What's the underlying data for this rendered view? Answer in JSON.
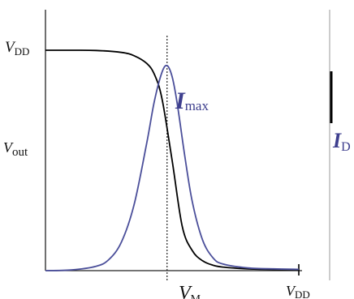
{
  "chart_data": {
    "type": "line",
    "title": "",
    "xlabel": "",
    "ylabel": "",
    "xlim": [
      0,
      1
    ],
    "ylim": [
      0,
      1.15
    ],
    "grid": false,
    "legend": "none",
    "series": [
      {
        "color": "#000000",
        "x": [
          0,
          0.1,
          0.2,
          0.3,
          0.35,
          0.4,
          0.43,
          0.46,
          0.5,
          0.54,
          0.58,
          0.62,
          0.66,
          0.7,
          0.8,
          0.9,
          1.0
        ],
        "y": [
          1.0,
          1.0,
          0.999,
          0.99,
          0.975,
          0.94,
          0.89,
          0.78,
          0.5,
          0.2,
          0.09,
          0.045,
          0.025,
          0.016,
          0.008,
          0.005,
          0.004
        ]
      },
      {
        "color": "#4b4f9a",
        "x": [
          0,
          0.1,
          0.2,
          0.25,
          0.3,
          0.35,
          0.4,
          0.43,
          0.46,
          0.48,
          0.5,
          0.52,
          0.55,
          0.58,
          0.62,
          0.66,
          0.7,
          0.8,
          0.9,
          1.0
        ],
        "y": [
          0.0,
          0.003,
          0.02,
          0.05,
          0.13,
          0.3,
          0.58,
          0.77,
          0.9,
          0.93,
          0.88,
          0.76,
          0.52,
          0.31,
          0.14,
          0.06,
          0.03,
          0.012,
          0.008,
          0.006
        ]
      }
    ],
    "annotations": {
      "vdd_y": {
        "main": "V",
        "sub": "DD"
      },
      "vout": {
        "main": "V",
        "sub": "out"
      },
      "imax": {
        "main": "I",
        "sub": "max"
      },
      "id_right": {
        "main": "I",
        "sub": "D"
      },
      "vm": {
        "main": "V",
        "sub": "M"
      },
      "vdd_x": {
        "main": "V",
        "sub": "DD"
      },
      "vm_x": 0.48
    }
  }
}
